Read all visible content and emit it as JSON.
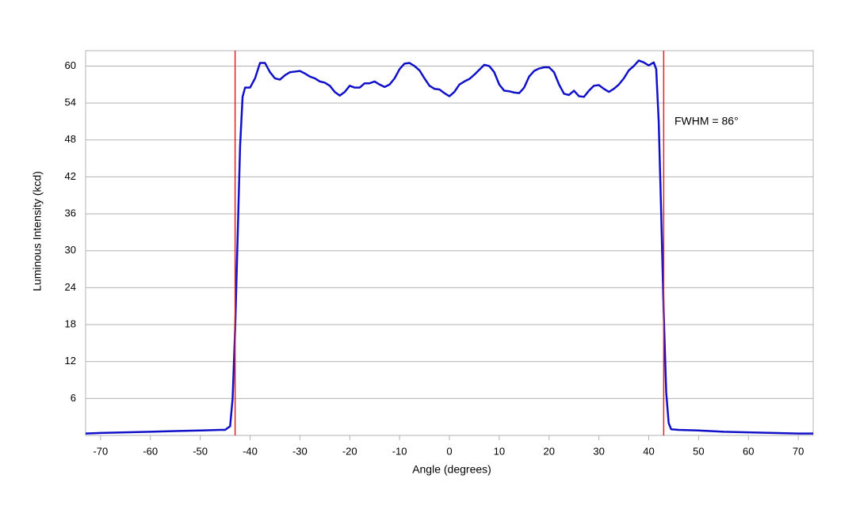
{
  "chart_data": {
    "type": "line",
    "x_label": "Angle (degrees)",
    "y_label": "Luminous Intensity (kcd)",
    "annotation": "FWHM = 86°",
    "x": [
      -73,
      -70,
      -65,
      -60,
      -55,
      -50,
      -46,
      -45,
      -44,
      -43.5,
      -43,
      -42.5,
      -42,
      -41.5,
      -41,
      -40,
      -39,
      -38,
      -37,
      -36,
      -35,
      -34,
      -33,
      -32,
      -31,
      -30,
      -29,
      -28,
      -27,
      -26,
      -25,
      -24,
      -23,
      -22,
      -21,
      -20,
      -19,
      -18,
      -17,
      -16,
      -15,
      -14,
      -13,
      -12,
      -11,
      -10,
      -9,
      -8,
      -7,
      -6,
      -5,
      -4,
      -3,
      -2,
      -1,
      0,
      1,
      2,
      3,
      4,
      5,
      6,
      7,
      8,
      9,
      10,
      11,
      12,
      13,
      14,
      15,
      16,
      17,
      18,
      19,
      20,
      21,
      22,
      23,
      24,
      25,
      26,
      27,
      28,
      29,
      30,
      31,
      32,
      33,
      34,
      35,
      36,
      37,
      38,
      39,
      40,
      41,
      41.5,
      42,
      42.5,
      43,
      43.5,
      44,
      44.5,
      46,
      50,
      55,
      60,
      65,
      70,
      73
    ],
    "values": [
      0.3,
      0.4,
      0.5,
      0.6,
      0.7,
      0.8,
      0.9,
      0.9,
      1.5,
      6,
      17,
      32,
      47,
      55,
      56.5,
      56.5,
      58,
      60.5,
      60.5,
      59,
      58,
      57.8,
      58.5,
      59,
      59.1,
      59.2,
      58.8,
      58.3,
      58,
      57.5,
      57.3,
      56.8,
      55.8,
      55.2,
      55.8,
      56.8,
      56.5,
      56.5,
      57.2,
      57.2,
      57.5,
      57,
      56.6,
      57,
      58,
      59.5,
      60.4,
      60.5,
      60,
      59.3,
      58,
      56.8,
      56.3,
      56.2,
      55.6,
      55.1,
      55.8,
      57,
      57.5,
      57.9,
      58.6,
      59.4,
      60.2,
      60,
      59,
      57,
      56,
      55.9,
      55.7,
      55.6,
      56.5,
      58.3,
      59.2,
      59.6,
      59.8,
      59.8,
      59,
      57,
      55.5,
      55.3,
      56,
      55.1,
      55,
      56,
      56.8,
      56.9,
      56.3,
      55.8,
      56.3,
      57,
      58,
      59.3,
      60,
      60.9,
      60.6,
      60.1,
      60.6,
      59.5,
      51,
      36,
      20,
      7,
      2,
      1,
      0.9,
      0.8,
      0.6,
      0.5,
      0.4,
      0.3,
      0.3
    ],
    "color": "#1010c8",
    "vlines": [
      -43,
      43
    ],
    "vline_color": "#e02020",
    "xlim": [
      -73,
      73
    ],
    "ylim": [
      0,
      62.5
    ],
    "xticks": [
      -70,
      -60,
      -50,
      -40,
      -30,
      -20,
      -10,
      0,
      10,
      20,
      30,
      40,
      50,
      60,
      70
    ],
    "yticks": [
      6,
      12,
      18,
      24,
      30,
      36,
      42,
      48,
      54,
      60
    ],
    "grid": true
  }
}
